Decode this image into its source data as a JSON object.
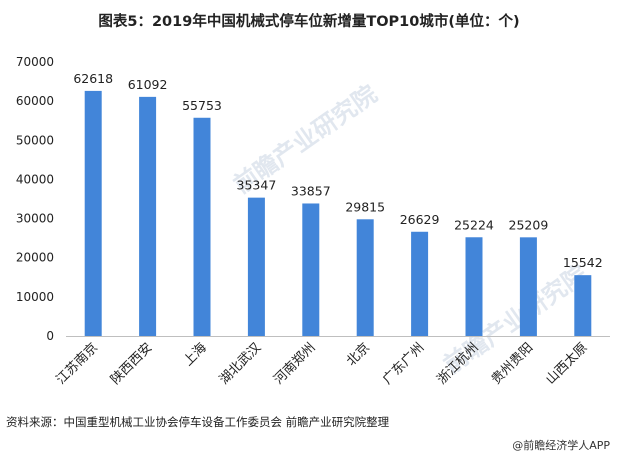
{
  "title": "图表5：2019年中国机械式停车位新增量TOP10城市(单位：个)",
  "source": "资料来源：中国重型机械工业协会停车设备工作委员会 前瞻产业研究院整理",
  "credit": "@前瞻经济学人APP",
  "watermark": "前瞻产业研究院",
  "colors": {
    "bar": "#4285d9",
    "axis": "#bfbfbf",
    "text": "#222222"
  },
  "chart_data": {
    "type": "bar",
    "categories": [
      "江苏南京",
      "陕西西安",
      "上海",
      "湖北武汉",
      "河南郑州",
      "北京",
      "广东广州",
      "浙江杭州",
      "贵州贵阳",
      "山西太原"
    ],
    "values": [
      62618,
      61092,
      55753,
      35347,
      33857,
      29815,
      26629,
      25224,
      25209,
      15542
    ],
    "ylim": [
      0,
      70000
    ],
    "yticks": [
      0,
      10000,
      20000,
      30000,
      40000,
      50000,
      60000,
      70000
    ],
    "grid": false,
    "data_labels": true
  }
}
